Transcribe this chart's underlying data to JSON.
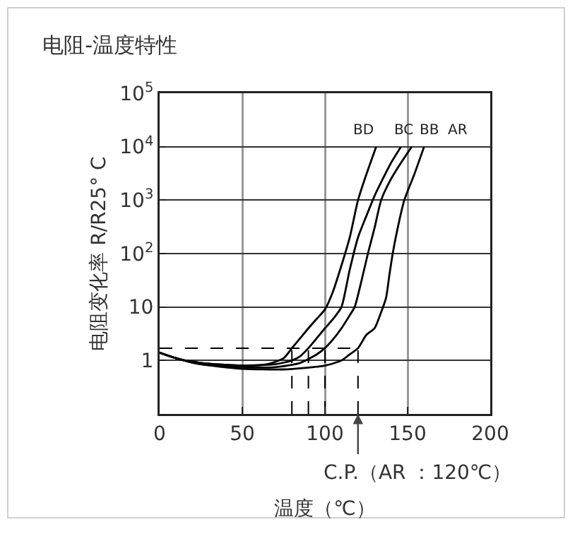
{
  "chart_data": {
    "type": "line",
    "title": "电阻-温度特性",
    "xlabel": "温度（℃）",
    "ylabel": "电阻变化率 R/R25° C",
    "xlim": [
      0,
      200
    ],
    "xticks": [
      0,
      50,
      100,
      150,
      200
    ],
    "ylim": [
      0.1,
      100000
    ],
    "yticks": [
      {
        "value": 0.1,
        "label": null
      },
      1,
      10,
      {
        "value": 100,
        "label": "10$^{2}$"
      },
      {
        "value": 1000,
        "label": "10$^{3}$"
      },
      {
        "value": 10000,
        "label": "10$^{4}$"
      },
      {
        "value": 100000,
        "label": "10$^{5}$"
      }
    ],
    "log": true,
    "grid": true,
    "legend": false,
    "marker": "none",
    "line_style": "solid",
    "series": [
      {
        "name": "BD",
        "color": "#000000",
        "x": [
          0,
          10,
          25,
          50,
          65,
          75,
          80,
          85,
          90,
          95,
          100,
          105,
          110,
          115,
          120,
          125,
          131
        ],
        "values": [
          1.4,
          1.1,
          0.9,
          0.8,
          0.85,
          1.1,
          1.7,
          2.6,
          4,
          6,
          9,
          20,
          60,
          200,
          1000,
          3000,
          10000
        ]
      },
      {
        "name": "BC",
        "color": "#000000",
        "x": [
          0,
          10,
          25,
          50,
          70,
          80,
          85,
          90,
          95,
          100,
          105,
          110,
          115,
          120,
          125,
          130,
          135,
          140,
          146
        ],
        "values": [
          1.4,
          1.1,
          0.9,
          0.8,
          0.85,
          1,
          1.2,
          1.7,
          2.6,
          4,
          6,
          10,
          50,
          200,
          500,
          1200,
          2500,
          5000,
          10000
        ]
      },
      {
        "name": "BB",
        "color": "#000000",
        "x": [
          0,
          10,
          25,
          50,
          70,
          85,
          95,
          100,
          105,
          110,
          115,
          118,
          122,
          126,
          130,
          134,
          140,
          146,
          152.5
        ],
        "values": [
          1.4,
          1.1,
          0.85,
          0.75,
          0.75,
          0.9,
          1.3,
          1.7,
          2.5,
          4,
          7,
          10,
          30,
          100,
          300,
          1000,
          2500,
          5000,
          10000
        ]
      },
      {
        "name": "AR",
        "color": "#000000",
        "x": [
          0,
          10,
          25,
          50,
          75,
          100,
          110,
          115,
          120,
          125,
          130,
          134,
          137,
          139,
          141,
          144,
          148,
          154,
          160
        ],
        "values": [
          1.4,
          1.1,
          0.85,
          0.7,
          0.68,
          0.8,
          1,
          1.3,
          1.7,
          3,
          4,
          8,
          15,
          40,
          100,
          300,
          1000,
          3000,
          10000
        ]
      },
      {
        "color": "#000000",
        "line_style": "dashed",
        "x": [
          0,
          120
        ],
        "values": [
          1.7,
          1.7
        ]
      },
      {
        "color": "#000000",
        "line_style": "dashed",
        "x": [
          80,
          80
        ],
        "values": [
          0.1,
          1.7
        ]
      },
      {
        "color": "#000000",
        "line_style": "dashed",
        "x": [
          90,
          90
        ],
        "values": [
          0.1,
          1.7
        ]
      },
      {
        "color": "#000000",
        "line_style": "dashed",
        "x": [
          100,
          100
        ],
        "values": [
          0.1,
          1.7
        ]
      },
      {
        "color": "#000000",
        "line_style": "dashed",
        "x": [
          120,
          120
        ],
        "values": [
          0.1,
          1.7
        ]
      }
    ],
    "annotations": [
      {
        "text": "C.P.（AR ：120℃）",
        "x": 120,
        "y": 0.1
      }
    ]
  }
}
